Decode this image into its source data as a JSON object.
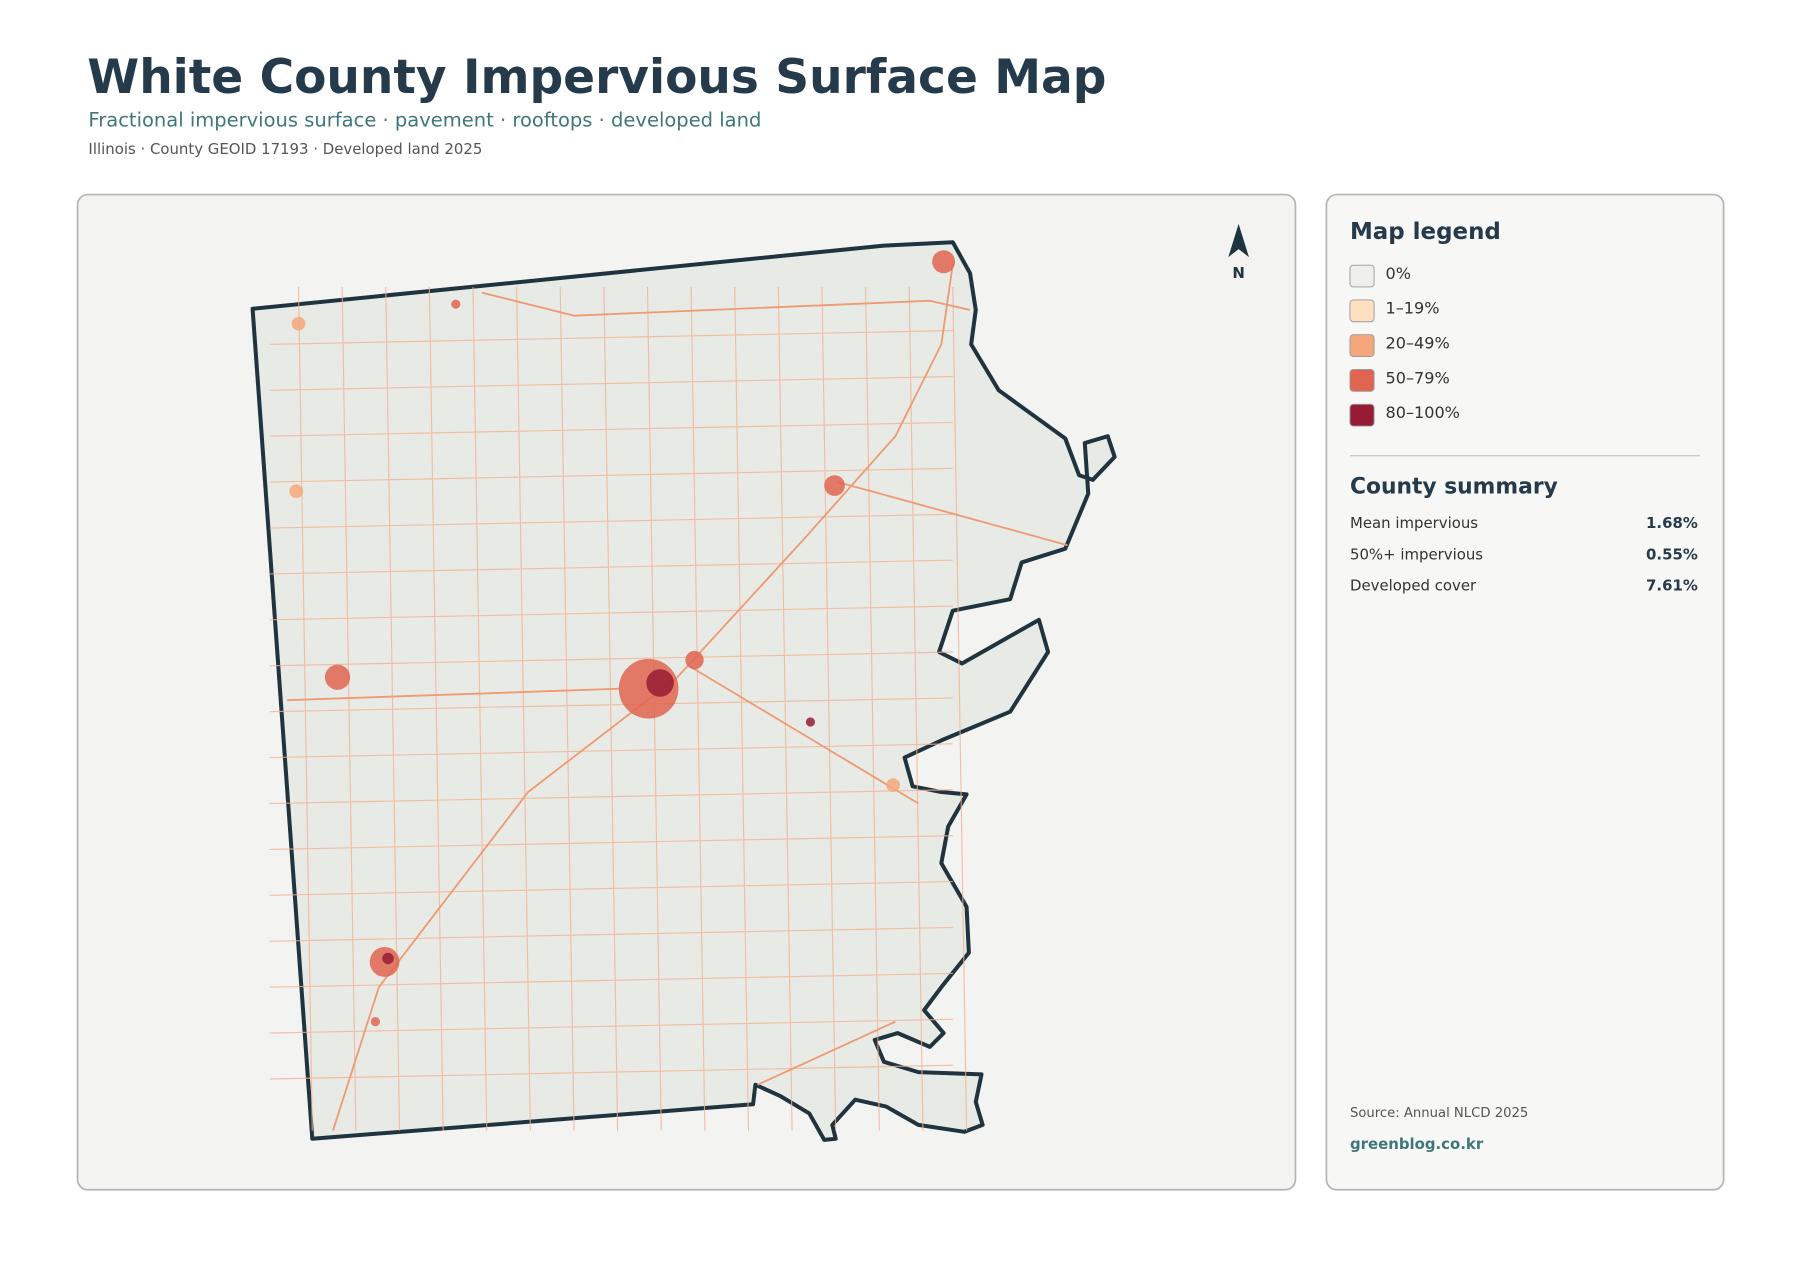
{
  "header": {
    "title": "White County Impervious Surface Map",
    "subtitle": "Fractional impervious surface · pavement · rooftops · developed land",
    "meta": "Illinois · County GEOID 17193 · Developed land 2025"
  },
  "map": {
    "north_label": "N"
  },
  "legend": {
    "title": "Map legend",
    "items": [
      {
        "label": "0%",
        "color": "#efefec"
      },
      {
        "label": "1–19%",
        "color": "#fde0c0"
      },
      {
        "label": "20–49%",
        "color": "#f4a77c"
      },
      {
        "label": "50–79%",
        "color": "#e06550"
      },
      {
        "label": "80–100%",
        "color": "#951c34"
      }
    ]
  },
  "summary": {
    "title": "County summary",
    "rows": [
      {
        "label": "Mean impervious",
        "value": "1.68%"
      },
      {
        "label": "50%+ impervious",
        "value": "0.55%"
      },
      {
        "label": "Developed cover",
        "value": "7.61%"
      }
    ]
  },
  "source": "Source: Annual NLCD 2025",
  "credit": "greenblog.co.kr"
}
